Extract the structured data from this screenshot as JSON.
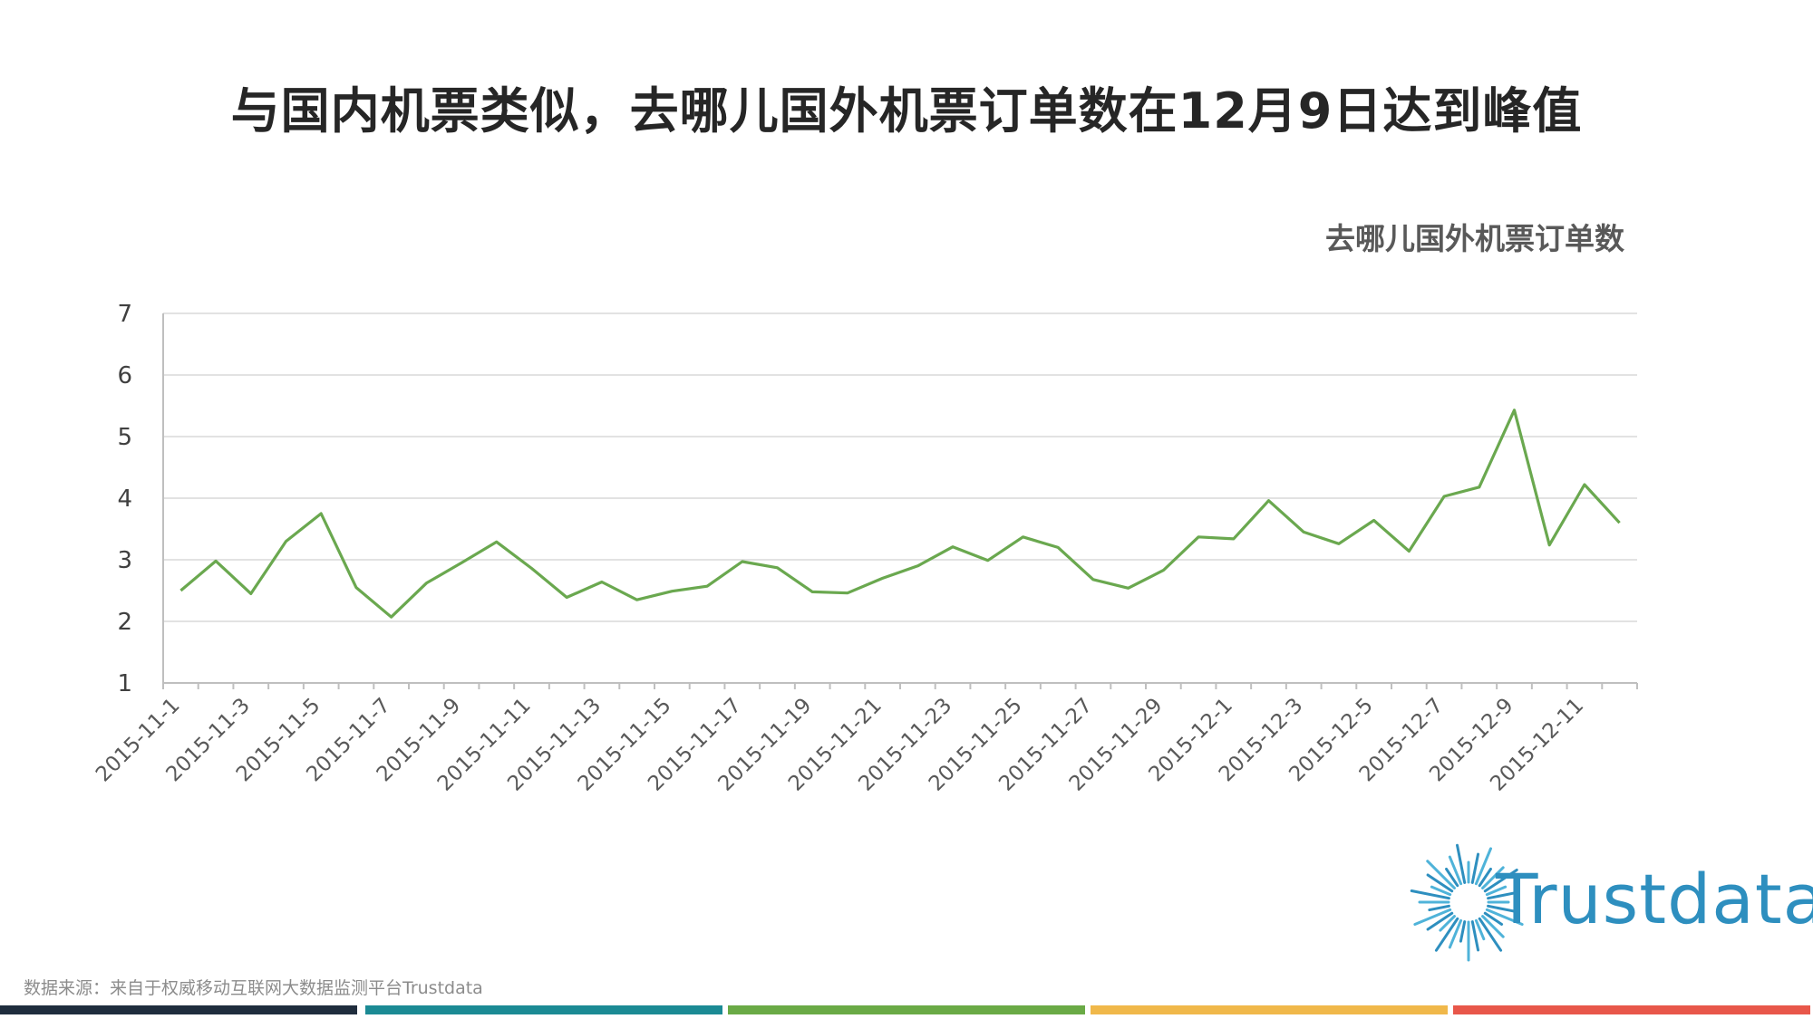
{
  "page": {
    "title": "与国内机票类似，去哪儿国外机票订单数在12月9日达到峰值",
    "source": "数据来源：来自于权威移动互联网大数据监测平台Trustdata",
    "logo_text": "Trustdata",
    "footer_colors": [
      "#1f2d3d",
      "#1b8a94",
      "#6aaa46",
      "#f0b84a",
      "#e8574a"
    ]
  },
  "chart_data": {
    "type": "line",
    "title": "去哪儿国外机票订单数",
    "xlabel": "",
    "ylabel": "",
    "ylim": [
      1,
      7
    ],
    "yticks": [
      1,
      2,
      3,
      4,
      5,
      6,
      7
    ],
    "grid": true,
    "x": [
      "2015-11-1",
      "2015-11-2",
      "2015-11-3",
      "2015-11-4",
      "2015-11-5",
      "2015-11-6",
      "2015-11-7",
      "2015-11-8",
      "2015-11-9",
      "2015-11-10",
      "2015-11-11",
      "2015-11-12",
      "2015-11-13",
      "2015-11-14",
      "2015-11-15",
      "2015-11-16",
      "2015-11-17",
      "2015-11-18",
      "2015-11-19",
      "2015-11-20",
      "2015-11-21",
      "2015-11-22",
      "2015-11-23",
      "2015-11-24",
      "2015-11-25",
      "2015-11-26",
      "2015-11-27",
      "2015-11-28",
      "2015-11-29",
      "2015-11-30",
      "2015-12-1",
      "2015-12-2",
      "2015-12-3",
      "2015-12-4",
      "2015-12-5",
      "2015-12-6",
      "2015-12-7",
      "2015-12-8",
      "2015-12-9",
      "2015-12-10",
      "2015-12-11",
      "2015-12-12"
    ],
    "x_tick_labels": [
      "2015-11-1",
      "2015-11-3",
      "2015-11-5",
      "2015-11-7",
      "2015-11-9",
      "2015-11-11",
      "2015-11-13",
      "2015-11-15",
      "2015-11-17",
      "2015-11-19",
      "2015-11-21",
      "2015-11-23",
      "2015-11-25",
      "2015-11-27",
      "2015-11-29",
      "2015-12-1",
      "2015-12-3",
      "2015-12-5",
      "2015-12-7",
      "2015-12-9",
      "2015-12-11"
    ],
    "series": [
      {
        "color": "#6aa84f",
        "values": [
          2.5,
          2.98,
          2.45,
          3.3,
          3.75,
          2.55,
          2.07,
          2.62,
          2.95,
          3.29,
          2.86,
          2.39,
          2.64,
          2.35,
          2.49,
          2.57,
          2.97,
          2.87,
          2.48,
          2.46,
          2.7,
          2.9,
          3.21,
          2.99,
          3.37,
          3.2,
          2.68,
          2.54,
          2.83,
          3.37,
          3.34,
          3.96,
          3.45,
          3.26,
          3.64,
          3.14,
          4.03,
          4.18,
          5.43,
          3.24,
          4.22,
          3.6
        ]
      }
    ]
  }
}
